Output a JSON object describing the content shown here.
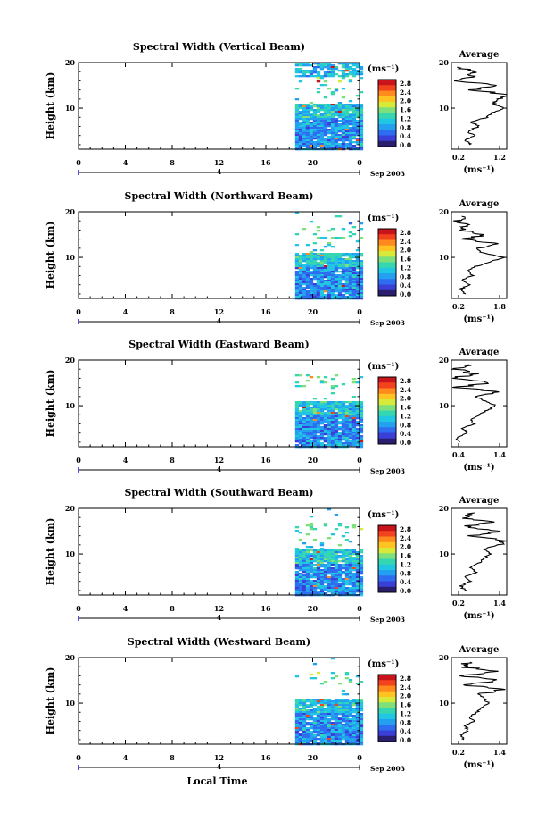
{
  "shared": {
    "x_ticks": [
      "0",
      "4",
      "8",
      "12",
      "16",
      "20",
      "0"
    ],
    "y_ticks": [
      "20",
      "10"
    ],
    "y_axis_label": "Height (km)",
    "date_label": "Sep 2003",
    "day_tick": "4",
    "x_axis_label": "Local Time",
    "unit_label": "(ms⁻¹)",
    "colorbar_ticks": [
      "2.8",
      "2.4",
      "2.0",
      "1.6",
      "1.2",
      "0.8",
      "0.4",
      "0.0"
    ],
    "colors": {
      "colormap": [
        "#2a1f6e",
        "#3a3fd8",
        "#2f6df0",
        "#23a0f0",
        "#20c6e2",
        "#35d6b0",
        "#7ee07a",
        "#d7ea3a",
        "#ffc422",
        "#ff8a1e",
        "#f2431e",
        "#c8141a"
      ]
    }
  },
  "chart_data": [
    {
      "type": "heatmap",
      "title": "Spectral Width (Vertical Beam)",
      "xlim": [
        0,
        24
      ],
      "ylim": [
        1,
        20
      ],
      "data_start_hour": 18.5,
      "avg": {
        "title": "Average",
        "xticks": [
          "0.2",
          "1.2"
        ],
        "xlim": [
          0.2,
          1.2
        ],
        "xlabel": "(ms⁻¹)",
        "profile": [
          [
            0.55,
            2
          ],
          [
            0.45,
            3
          ],
          [
            0.6,
            4
          ],
          [
            0.5,
            5
          ],
          [
            0.7,
            6
          ],
          [
            0.55,
            7
          ],
          [
            0.85,
            8
          ],
          [
            0.95,
            9
          ],
          [
            1.15,
            10
          ],
          [
            0.95,
            11
          ],
          [
            1.05,
            12
          ],
          [
            1.2,
            13
          ],
          [
            0.6,
            14
          ],
          [
            1.0,
            15
          ],
          [
            0.35,
            16
          ],
          [
            0.55,
            17
          ],
          [
            0.6,
            18
          ],
          [
            0.3,
            19
          ]
        ]
      }
    },
    {
      "type": "heatmap",
      "title": "Spectral Width (Northward Beam)",
      "xlim": [
        0,
        24
      ],
      "ylim": [
        1,
        20
      ],
      "data_start_hour": 18.5,
      "avg": {
        "title": "Average",
        "xticks": [
          "0.2",
          "1.8"
        ],
        "xlim": [
          0.2,
          1.8
        ],
        "xlabel": "(ms⁻¹)",
        "profile": [
          [
            0.6,
            2
          ],
          [
            0.45,
            3
          ],
          [
            0.7,
            4
          ],
          [
            0.5,
            5
          ],
          [
            0.8,
            6
          ],
          [
            0.7,
            7
          ],
          [
            0.9,
            8
          ],
          [
            1.3,
            9
          ],
          [
            1.7,
            10
          ],
          [
            1.1,
            11
          ],
          [
            0.9,
            12
          ],
          [
            1.5,
            13
          ],
          [
            0.5,
            14
          ],
          [
            1.2,
            15
          ],
          [
            0.4,
            16
          ],
          [
            0.7,
            17
          ],
          [
            0.35,
            18
          ],
          [
            0.5,
            19
          ]
        ]
      }
    },
    {
      "type": "heatmap",
      "title": "Spectral Width (Eastward Beam)",
      "xlim": [
        0,
        24
      ],
      "ylim": [
        1,
        20
      ],
      "data_start_hour": 18.5,
      "avg": {
        "title": "Average",
        "xticks": [
          "0.4",
          "1.4"
        ],
        "xlim": [
          0.4,
          1.4
        ],
        "xlabel": "(ms⁻¹)",
        "profile": [
          [
            0.55,
            2
          ],
          [
            0.5,
            3
          ],
          [
            0.7,
            4
          ],
          [
            0.6,
            5
          ],
          [
            0.8,
            6
          ],
          [
            0.75,
            7
          ],
          [
            0.9,
            8
          ],
          [
            1.05,
            9
          ],
          [
            1.2,
            10
          ],
          [
            1.0,
            11
          ],
          [
            0.85,
            12
          ],
          [
            1.3,
            13
          ],
          [
            0.5,
            14
          ],
          [
            1.1,
            15
          ],
          [
            0.45,
            16
          ],
          [
            0.8,
            17
          ],
          [
            0.5,
            18
          ],
          [
            0.7,
            19
          ]
        ]
      }
    },
    {
      "type": "heatmap",
      "title": "Spectral Width (Southward Beam)",
      "xlim": [
        0,
        24
      ],
      "ylim": [
        1,
        20
      ],
      "data_start_hour": 18.5,
      "avg": {
        "title": "Average",
        "xticks": [
          "0.2",
          "1.4"
        ],
        "xlim": [
          0.2,
          1.4
        ],
        "xlabel": "(ms⁻¹)",
        "profile": [
          [
            0.5,
            2
          ],
          [
            0.4,
            3
          ],
          [
            0.6,
            4
          ],
          [
            0.5,
            5
          ],
          [
            0.75,
            6
          ],
          [
            0.6,
            7
          ],
          [
            0.8,
            8
          ],
          [
            0.9,
            9
          ],
          [
            1.05,
            10
          ],
          [
            0.9,
            11
          ],
          [
            1.2,
            12
          ],
          [
            1.35,
            13
          ],
          [
            0.6,
            14
          ],
          [
            1.3,
            15
          ],
          [
            0.5,
            16
          ],
          [
            1.1,
            17
          ],
          [
            0.45,
            18
          ],
          [
            0.7,
            19
          ]
        ]
      }
    },
    {
      "type": "heatmap",
      "title": "Spectral Width (Westward Beam)",
      "xlim": [
        0,
        24
      ],
      "ylim": [
        1,
        20
      ],
      "data_start_hour": 18.5,
      "avg": {
        "title": "Average",
        "xticks": [
          "0.2",
          "1.4"
        ],
        "xlim": [
          0.2,
          1.4
        ],
        "xlabel": "(ms⁻¹)",
        "profile": [
          [
            0.45,
            2
          ],
          [
            0.4,
            3
          ],
          [
            0.55,
            4
          ],
          [
            0.5,
            5
          ],
          [
            0.7,
            6
          ],
          [
            0.6,
            7
          ],
          [
            0.75,
            8
          ],
          [
            0.85,
            9
          ],
          [
            1.0,
            10
          ],
          [
            0.9,
            11
          ],
          [
            0.8,
            12
          ],
          [
            1.35,
            13
          ],
          [
            0.5,
            14
          ],
          [
            1.25,
            15
          ],
          [
            0.45,
            16
          ],
          [
            1.2,
            17
          ],
          [
            0.4,
            18
          ],
          [
            0.6,
            19
          ]
        ]
      }
    }
  ]
}
